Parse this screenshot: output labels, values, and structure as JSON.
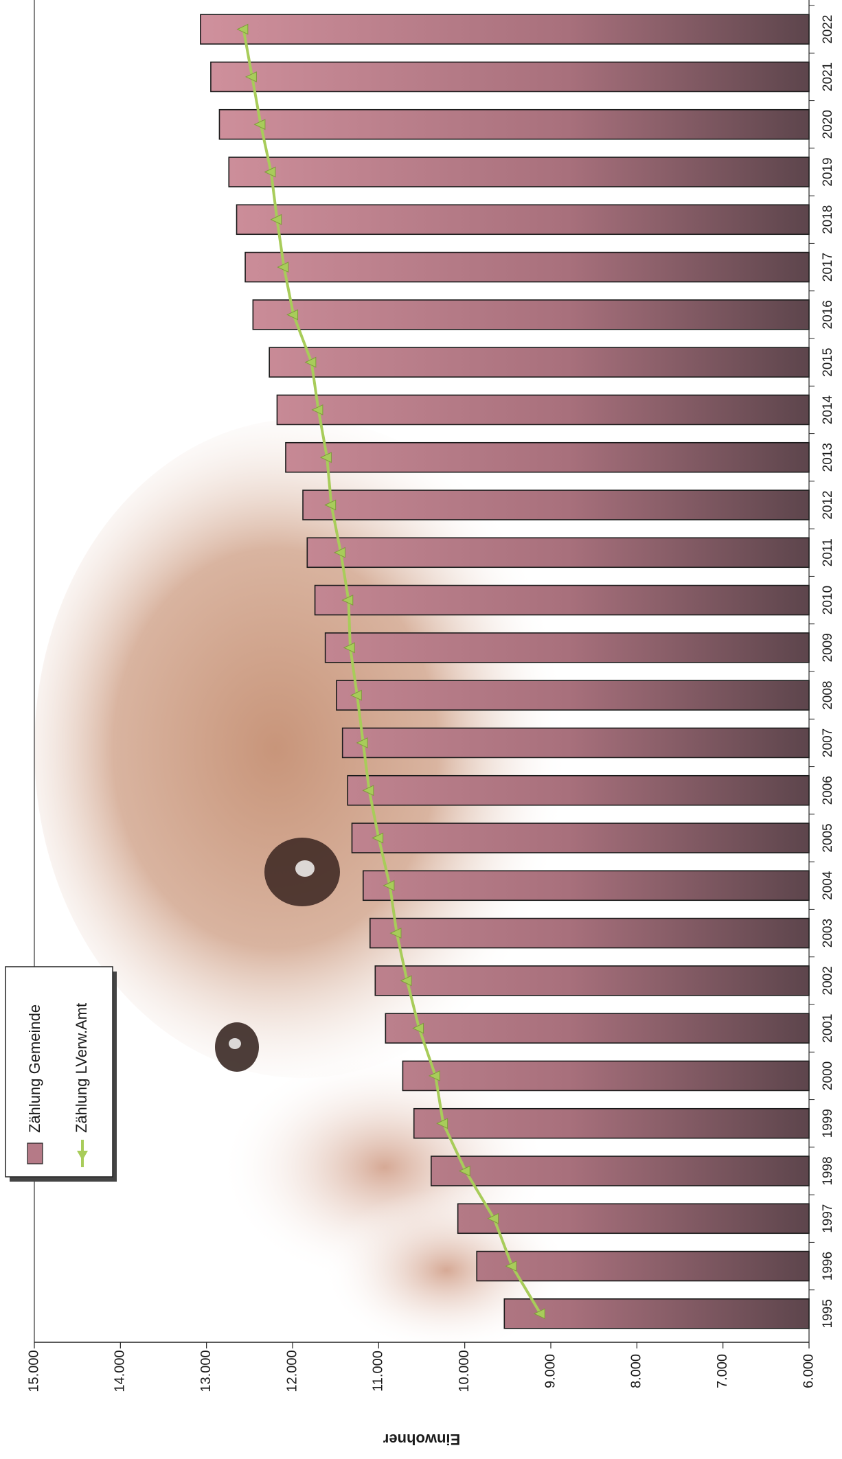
{
  "chart_data": {
    "type": "bar",
    "orientation": "horizontal-bars, page rotated 90deg clockwise",
    "categories": [
      "1995",
      "1996",
      "1997",
      "1998",
      "1999",
      "2000",
      "2001",
      "2002",
      "2003",
      "2004",
      "2005",
      "2006",
      "2007",
      "2008",
      "2009",
      "2010",
      "2011",
      "2012",
      "2013",
      "2014",
      "2015",
      "2016",
      "2017",
      "2018",
      "2019",
      "2020",
      "2021",
      "2022"
    ],
    "series": [
      {
        "name": "Zählung Gemeinde",
        "kind": "bar",
        "color": "#b57a87",
        "values": [
          9540,
          9860,
          10080,
          10390,
          10590,
          10720,
          10920,
          11040,
          11100,
          11180,
          11310,
          11360,
          11420,
          11490,
          11620,
          11740,
          11830,
          11880,
          12080,
          12180,
          12270,
          12460,
          12550,
          12650,
          12740,
          12850,
          12950,
          13070
        ]
      },
      {
        "name": "Zählung LVerw.Amt",
        "kind": "line",
        "color": "#a8cc5a",
        "values": [
          9120,
          9450,
          9660,
          9990,
          10250,
          10340,
          10530,
          10670,
          10790,
          10870,
          11000,
          11110,
          11180,
          11250,
          11330,
          11350,
          11440,
          11550,
          11600,
          11700,
          11780,
          11990,
          12100,
          12180,
          12250,
          12370,
          12470,
          12570
        ]
      }
    ],
    "ylabel": "Einwohner",
    "ylim": [
      6000,
      15000
    ],
    "yticks": [
      "6.000",
      "7.000",
      "8.000",
      "9.000",
      "10.000",
      "11.000",
      "12.000",
      "13.000",
      "14.000",
      "15.000"
    ],
    "legend_position": "top-left",
    "grid": false
  }
}
